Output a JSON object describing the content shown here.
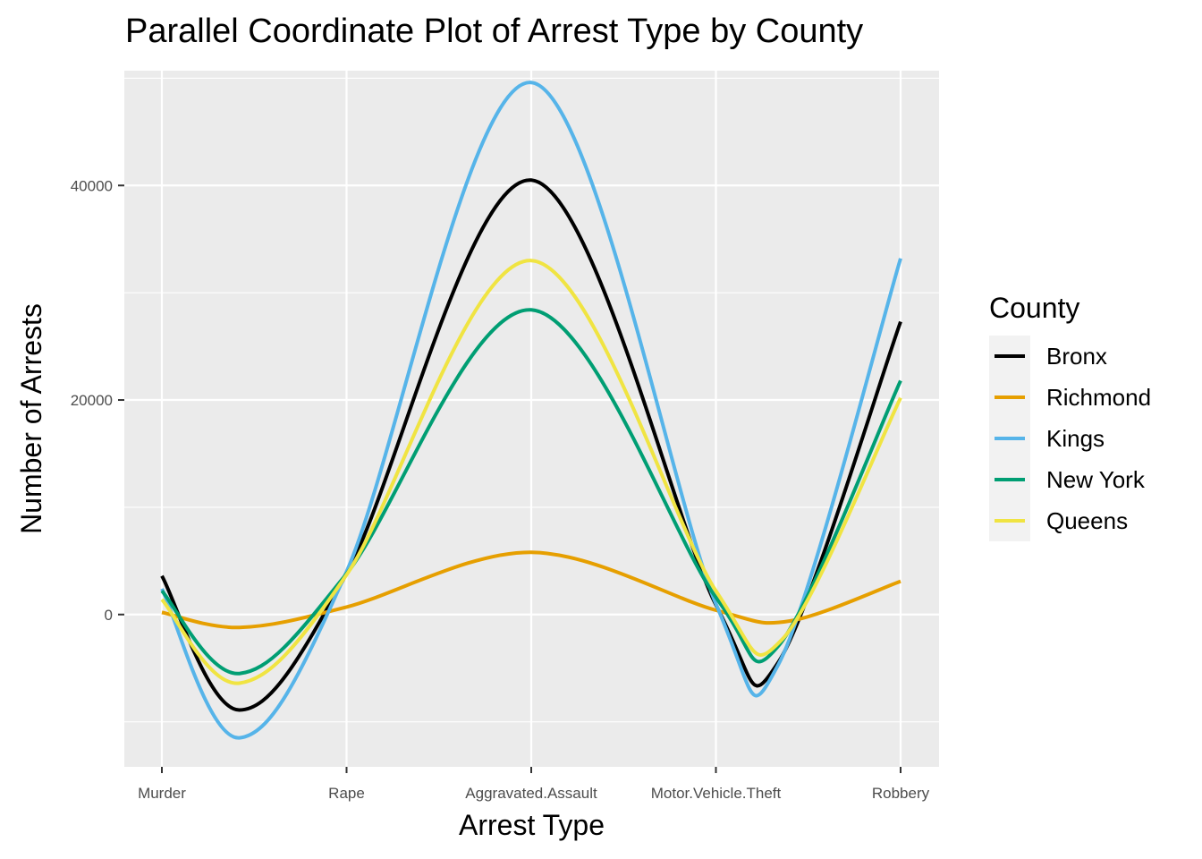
{
  "chart_data": {
    "type": "line",
    "title": "Parallel Coordinate Plot of Arrest Type by County",
    "xlabel": "Arrest Type",
    "ylabel": "Number of Arrests",
    "categories": [
      "Murder",
      "Rape",
      "Aggravated.Assault",
      "Motor.Vehicle.Theft",
      "Robbery"
    ],
    "yticks": [
      0,
      20000,
      40000
    ],
    "ytick_labels": [
      "0",
      "20000",
      "40000"
    ],
    "ylim": [
      -14200,
      50700
    ],
    "grid": true,
    "smoothed": true,
    "legend_title": "County",
    "legend_position": "right",
    "series": [
      {
        "name": "Bronx",
        "color": "#000000",
        "values": [
          3600,
          3800,
          40500,
          900,
          27300
        ],
        "curve": [
          [
            0,
            3600
          ],
          [
            0.42,
            -8900
          ],
          [
            1,
            3800
          ],
          [
            2,
            40500
          ],
          [
            3,
            900
          ],
          [
            3.34,
            -4400
          ],
          [
            4,
            27300
          ]
        ]
      },
      {
        "name": "Richmond",
        "color": "#E69F00",
        "values": [
          200,
          700,
          5800,
          400,
          3100
        ],
        "curve": [
          [
            0,
            200
          ],
          [
            0.42,
            -1200
          ],
          [
            1,
            700
          ],
          [
            2,
            5800
          ],
          [
            3,
            400
          ],
          [
            3.4,
            -600
          ],
          [
            4,
            3100
          ]
        ]
      },
      {
        "name": "Kings",
        "color": "#56B4E9",
        "values": [
          2400,
          4000,
          49600,
          1000,
          33200
        ],
        "curve": [
          [
            0,
            2400
          ],
          [
            0.42,
            -11500
          ],
          [
            1,
            4000
          ],
          [
            2,
            49600
          ],
          [
            3,
            1000
          ],
          [
            3.34,
            -4600
          ],
          [
            4,
            33200
          ]
        ]
      },
      {
        "name": "New York",
        "color": "#009E73",
        "values": [
          2200,
          3800,
          28400,
          1600,
          21800
        ],
        "curve": [
          [
            0,
            2200
          ],
          [
            0.42,
            -5500
          ],
          [
            1,
            3800
          ],
          [
            2,
            28400
          ],
          [
            3,
            1600
          ],
          [
            3.34,
            -2900
          ],
          [
            4,
            21800
          ]
        ]
      },
      {
        "name": "Queens",
        "color": "#F0E442",
        "values": [
          1400,
          3700,
          33000,
          2200,
          20200
        ],
        "curve": [
          [
            0,
            1400
          ],
          [
            0.42,
            -6400
          ],
          [
            1,
            3700
          ],
          [
            2,
            33000
          ],
          [
            3,
            2200
          ],
          [
            3.36,
            -2300
          ],
          [
            4,
            20200
          ]
        ]
      }
    ]
  }
}
